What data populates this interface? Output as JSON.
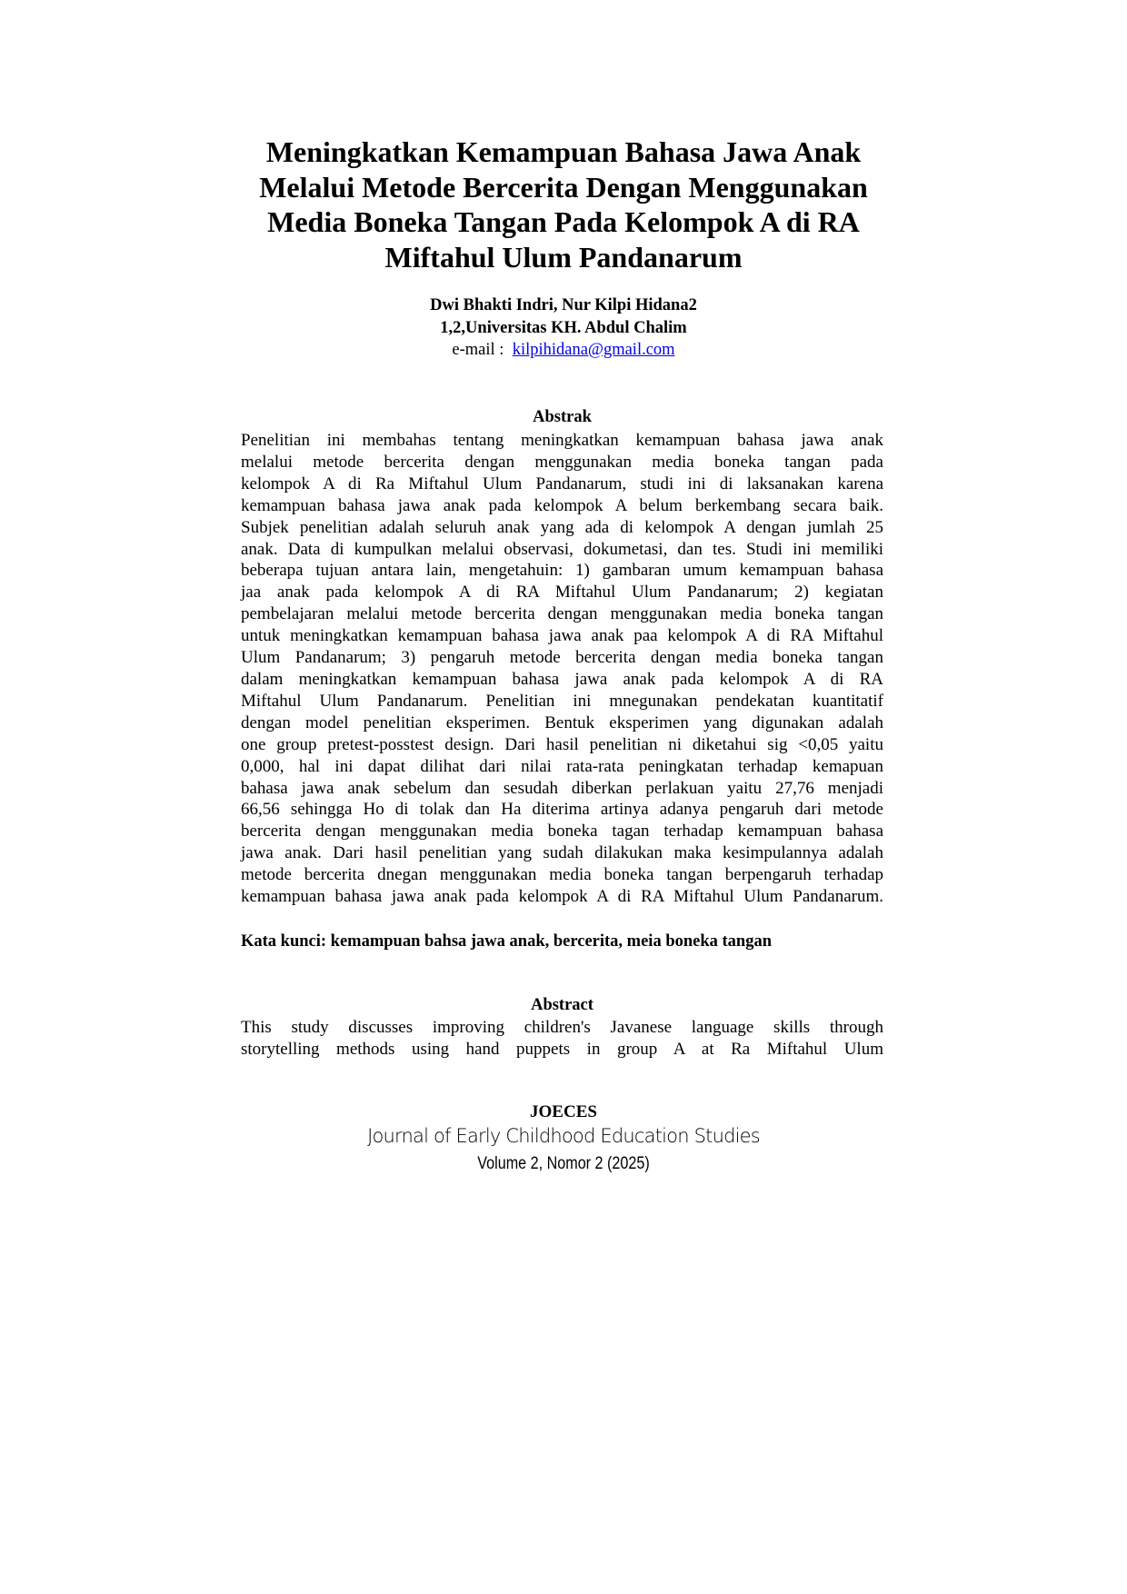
{
  "title_lines": [
    "Meningkatkan Kemampuan Bahasa Jawa Anak",
    "Melalui Metode Bercerita Dengan Menggunakan",
    "Media Boneka Tangan Pada Kelompok A di RA",
    "Miftahul Ulum Pandanarum"
  ],
  "authors": "Dwi Bhakti Indri, Nur Kilpi Hidana2",
  "affiliation": "1,2,Universitas KH. Abdul Chalim",
  "email_label": "e-mail :",
  "email": "kilpihidana@gmail.com",
  "abstrak": {
    "heading": "Abstrak",
    "lines": [
      "Penelitian ini membahas tentang meningkatkan kemampuan bahasa jawa anak",
      "melalui metode bercerita dengan menggunakan media boneka tangan pada",
      "kelompok A di Ra Miftahul Ulum Pandanarum, studi ini di laksanakan karena",
      "kemampuan bahasa jawa anak pada kelompok A belum berkembang secara baik.",
      "Subjek penelitian adalah seluruh anak yang ada di kelompok A dengan jumlah 25",
      "anak. Data di kumpulkan melalui observasi, dokumetasi, dan tes. Studi ini memiliki",
      "beberapa tujuan antara lain, mengetahuin: 1) gambaran umum kemampuan bahasa",
      "jaa anak pada kelompok A di RA Miftahul Ulum Pandanarum; 2) kegiatan",
      "pembelajaran melalui metode bercerita dengan menggunakan media boneka tangan",
      "untuk meningkatkan kemampuan bahasa jawa anak paa kelompok A di RA Miftahul",
      "Ulum Pandanarum; 3) pengaruh metode bercerita dengan media boneka tangan",
      "dalam meningkatkan kemampuan bahasa jawa anak pada kelompok A di RA",
      "Miftahul Ulum Pandanarum. Penelitian ini mnegunakan pendekatan kuantitatif",
      "dengan model penelitian eksperimen. Bentuk eksperimen yang digunakan adalah",
      "one group pretest-posstest design. Dari hasil penelitian ni diketahui sig <0,05  yaitu",
      "0,000, hal ini dapat dilihat dari nilai rata-rata peningkatan terhadap kemapuan",
      "bahasa jawa anak sebelum dan sesudah diberkan perlakuan yaitu 27,76 menjadi",
      "66,56 sehingga Ho di tolak dan Ha diterima artinya adanya pengaruh dari metode",
      "bercerita dengan menggunakan media boneka tagan terhadap kemampuan bahasa",
      "jawa anak. Dari hasil penelitian yang sudah dilakukan maka kesimpulannya adalah",
      "metode bercerita dnegan menggunakan media boneka tangan berpengaruh terhadap",
      "kemampuan bahasa jawa anak pada kelompok A di RA Miftahul Ulum Pandanarum."
    ]
  },
  "keywords": "Kata kunci: kemampuan bahsa jawa anak, bercerita, meia boneka tangan",
  "abstract": {
    "heading": "Abstract",
    "lines": [
      "This study discusses improving children's Javanese language skills through",
      "storytelling methods using hand puppets in group A at Ra Miftahul Ulum"
    ]
  },
  "footer": {
    "journal_abbr": "JOECES",
    "journal_name": "Journal of Early Childhood Education Studies",
    "volume": "Volume 2, Nomor 2 (2025)"
  }
}
